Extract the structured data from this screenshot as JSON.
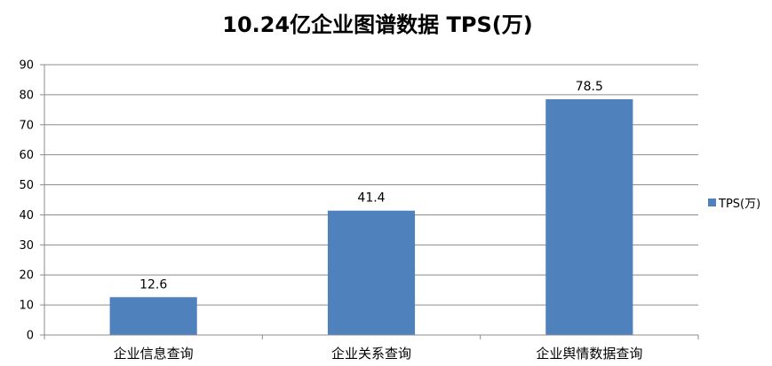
{
  "chart_data": {
    "type": "bar",
    "title": "10.24亿企业图谱数据 TPS(万)",
    "xlabel": "",
    "ylabel": "",
    "categories": [
      "企业信息查询",
      "企业关系查询",
      "企业舆情数据查询"
    ],
    "series": [
      {
        "name": "TPS(万)",
        "values": [
          12.6,
          41.4,
          78.5
        ],
        "color": "#4f81bd"
      }
    ],
    "data_labels": [
      "12.6",
      "41.4",
      "78.5"
    ],
    "ylim": [
      0,
      90
    ],
    "yticks": [
      0,
      10,
      20,
      30,
      40,
      50,
      60,
      70,
      80,
      90
    ],
    "ytick_labels": [
      "0",
      "10",
      "20",
      "30",
      "40",
      "50",
      "60",
      "70",
      "80",
      "90"
    ],
    "grid": true,
    "legend": "right"
  }
}
